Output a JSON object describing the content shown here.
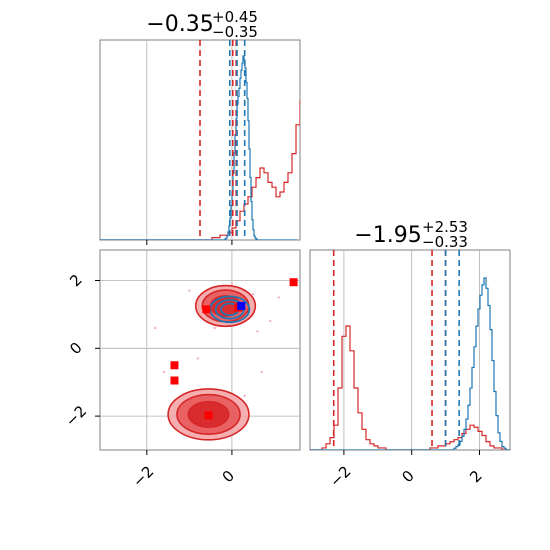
{
  "chart_data": {
    "type": "corner",
    "params": [
      {
        "title_value": "−0.35",
        "title_upper": "+0.45",
        "title_lower": "−0.35",
        "range": [
          -3.1,
          1.6
        ],
        "ticks": [
          -2,
          0
        ],
        "tick_labels": [
          "−2",
          "0"
        ],
        "hist_ticks": [
          -2,
          0
        ],
        "red_quantiles": [
          -0.75,
          0.02,
          0.1
        ],
        "blue_quantiles": [
          -0.05,
          0.12,
          0.3
        ],
        "red_hist": {
          "edges_start": -3.1,
          "bin_width": 0.094,
          "counts": [
            0,
            0,
            0,
            0,
            0,
            0,
            0,
            0,
            0,
            0,
            0,
            0,
            0,
            0,
            0,
            0,
            0,
            0,
            0,
            0,
            0,
            0,
            0,
            0,
            0,
            0,
            0,
            0,
            1,
            1,
            2,
            2,
            3,
            5,
            8,
            12,
            15,
            18,
            22,
            26,
            30,
            28,
            24,
            22,
            18,
            20,
            24,
            28,
            36,
            48,
            58,
            60,
            52,
            40,
            28,
            16,
            8,
            4,
            2,
            1,
            1,
            0,
            0,
            0
          ]
        },
        "blue_hist": {
          "edges_start": -3.1,
          "bin_width": 0.0235,
          "counts": [
            0,
            0,
            0,
            0,
            0,
            0,
            0,
            0,
            0,
            0,
            0,
            0,
            0,
            0,
            0,
            0,
            0,
            0,
            0,
            0,
            0,
            0,
            0,
            0,
            0,
            0,
            0,
            0,
            0,
            0,
            0,
            0,
            0,
            0,
            0,
            0,
            0,
            0,
            0,
            0,
            0,
            0,
            0,
            0,
            0,
            0,
            0,
            0,
            0,
            0,
            0,
            0,
            0,
            0,
            0,
            0,
            0,
            0,
            0,
            0,
            0,
            0,
            0,
            0,
            0,
            0,
            0,
            0,
            0,
            0,
            0,
            0,
            0,
            0,
            0,
            0,
            0,
            0,
            0,
            0,
            0,
            0,
            0,
            0,
            0,
            0,
            0,
            0,
            0,
            0,
            0,
            0,
            0,
            0,
            0,
            0,
            0,
            0,
            0,
            0,
            0,
            0,
            0,
            0,
            0,
            0,
            0,
            0,
            0,
            0,
            0,
            0,
            0,
            0,
            0,
            0,
            0,
            0,
            0,
            0,
            0,
            0,
            0,
            0,
            0,
            1,
            2,
            4,
            8,
            14,
            22,
            34,
            48,
            66,
            86,
            104,
            120,
            134,
            142,
            150,
            160,
            168,
            175,
            182,
            178,
            170,
            156,
            140,
            118,
            90,
            62,
            38,
            20,
            10,
            4,
            2,
            1,
            0,
            0,
            0,
            0,
            0,
            0,
            0,
            0,
            0,
            0,
            0,
            0,
            0,
            0,
            0,
            0,
            0,
            0,
            0,
            0,
            0,
            0,
            0,
            0,
            0,
            0,
            0,
            0,
            0,
            0,
            0,
            0,
            0,
            0,
            0,
            0,
            0,
            0,
            0,
            0
          ]
        }
      },
      {
        "title_value": "−1.95",
        "title_upper": "+2.53",
        "title_lower": "−0.33",
        "range": [
          -3.0,
          2.9
        ],
        "ticks": [
          -2,
          0,
          2
        ],
        "tick_labels": [
          "−2",
          "0",
          "2"
        ],
        "hist_ticks": [
          -2,
          0,
          2
        ],
        "red_quantiles": [
          -2.3,
          0.6,
          1.0
        ],
        "blue_quantiles": [
          1.0,
          1.4
        ],
        "red_hist": {
          "edges_start": -3.0,
          "bin_width": 0.118,
          "counts": [
            0,
            0,
            0,
            1,
            3,
            6,
            12,
            30,
            55,
            60,
            48,
            30,
            18,
            10,
            5,
            3,
            2,
            1,
            1,
            0,
            0,
            0,
            0,
            0,
            0,
            0,
            0,
            0,
            0,
            0,
            1,
            1,
            2,
            2,
            3,
            4,
            5,
            6,
            8,
            10,
            12,
            11,
            9,
            7,
            4,
            2,
            1,
            1,
            0,
            0
          ]
        },
        "blue_hist": {
          "edges_start": -3.0,
          "bin_width": 0.059,
          "counts": [
            0,
            0,
            0,
            0,
            0,
            0,
            0,
            0,
            0,
            0,
            0,
            0,
            0,
            0,
            0,
            0,
            0,
            0,
            0,
            0,
            0,
            0,
            0,
            0,
            0,
            0,
            0,
            0,
            0,
            0,
            0,
            0,
            0,
            0,
            0,
            0,
            0,
            0,
            0,
            0,
            0,
            0,
            0,
            0,
            0,
            0,
            0,
            0,
            0,
            0,
            0,
            0,
            0,
            0,
            0,
            0,
            0,
            0,
            0,
            0,
            0,
            0,
            0,
            0,
            0,
            0,
            0,
            0,
            0,
            0,
            0,
            0,
            1,
            2,
            3,
            5,
            8,
            12,
            18,
            26,
            36,
            48,
            60,
            72,
            82,
            90,
            96,
            100,
            94,
            84,
            70,
            52,
            34,
            20,
            10,
            5,
            2,
            1,
            0,
            0
          ]
        }
      }
    ],
    "joint": {
      "red_blobs": [
        {
          "cx": -0.55,
          "cy": -1.95,
          "rx": 0.95,
          "ry": 0.75
        },
        {
          "cx": -0.15,
          "cy": 1.25,
          "rx": 0.7,
          "ry": 0.6
        }
      ],
      "blue_blobs": [
        {
          "cx": -0.05,
          "cy": 1.15,
          "rx": 0.4,
          "ry": 0.45
        }
      ],
      "red_markers": [
        {
          "x": -0.6,
          "y": 1.15
        },
        {
          "x": 0.15,
          "y": 1.2
        },
        {
          "x": 1.45,
          "y": 1.95
        },
        {
          "x": -1.35,
          "y": -0.5
        },
        {
          "x": -1.35,
          "y": -0.95
        },
        {
          "x": -0.55,
          "y": -1.98
        }
      ],
      "blue_markers": [
        {
          "x": 0.22,
          "y": 1.25
        }
      ],
      "scatter": [
        {
          "x": -1.3,
          "y": -1.0
        },
        {
          "x": -0.8,
          "y": -0.3
        },
        {
          "x": 0.5,
          "y": 1.6
        },
        {
          "x": 0.9,
          "y": 0.8
        },
        {
          "x": -0.9,
          "y": -2.6
        },
        {
          "x": 0.3,
          "y": -1.4
        },
        {
          "x": 1.1,
          "y": 1.5
        },
        {
          "x": -1.0,
          "y": 1.7
        },
        {
          "x": -0.4,
          "y": 0.6
        },
        {
          "x": 0.7,
          "y": -0.7
        },
        {
          "x": -1.8,
          "y": 0.6
        },
        {
          "x": -1.6,
          "y": -0.7
        },
        {
          "x": 0.0,
          "y": 1.9
        },
        {
          "x": 0.6,
          "y": 0.5
        }
      ]
    },
    "colors": {
      "red": "#d62728",
      "blue": "#1f77b4",
      "red_fill_light": "#f4a1a3",
      "marker_red": "#ff0000",
      "marker_blue": "#0000ff",
      "grid": "#b0b0b0",
      "frame": "#808080"
    },
    "grid": true
  }
}
